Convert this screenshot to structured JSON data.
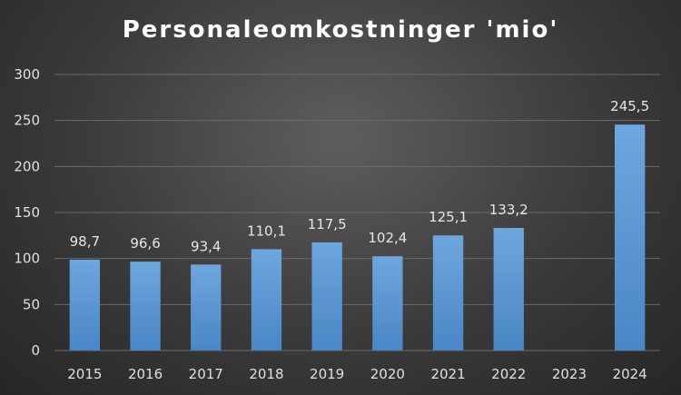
{
  "chart_data": {
    "type": "bar",
    "title": "Personaleomkostninger 'mio'",
    "xlabel": "",
    "ylabel": "",
    "categories": [
      "2015",
      "2016",
      "2017",
      "2018",
      "2019",
      "2020",
      "2021",
      "2022",
      "2023",
      "2024"
    ],
    "values": [
      98.7,
      96.6,
      93.4,
      110.1,
      117.5,
      102.4,
      125.1,
      133.2,
      null,
      245.5
    ],
    "value_labels": [
      "98,7",
      "96,6",
      "93,4",
      "110,1",
      "117,5",
      "102,4",
      "125,1",
      "133,2",
      "",
      "245,5"
    ],
    "ylim": [
      0,
      300
    ],
    "yticks": [
      "0",
      "50",
      "100",
      "150",
      "200",
      "250",
      "300"
    ],
    "grid": true,
    "legend": "none",
    "colors": {
      "bar_top": "#6ea6de",
      "bar_bottom": "#4a86c6",
      "gridline": "#6a6a6a",
      "background": "#3a3a3a"
    }
  }
}
